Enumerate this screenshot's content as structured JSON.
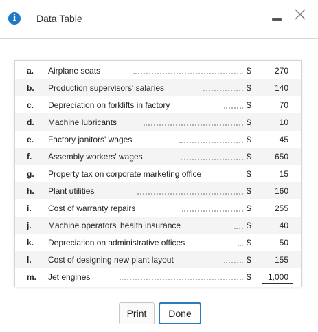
{
  "dialog": {
    "title": "Data Table",
    "info_icon": "info-icon",
    "minimize_icon": "minus-icon",
    "close_icon": "close-icon"
  },
  "table": {
    "rows": [
      {
        "letter": "a.",
        "desc": "Airplane seats",
        "dollar": "$",
        "amount": "270"
      },
      {
        "letter": "b.",
        "desc": "Production supervisors' salaries",
        "dollar": "$",
        "amount": "140"
      },
      {
        "letter": "c.",
        "desc": "Depreciation on forklifts in factory",
        "dollar": "$",
        "amount": "70"
      },
      {
        "letter": "d.",
        "desc": "Machine lubricants",
        "dollar": "$",
        "amount": "10"
      },
      {
        "letter": "e.",
        "desc": "Factory janitors' wages",
        "dollar": "$",
        "amount": "45"
      },
      {
        "letter": "f.",
        "desc": "Assembly workers' wages",
        "dollar": "$",
        "amount": "650"
      },
      {
        "letter": "g.",
        "desc": "Property tax on corporate marketing office",
        "dollar": "$",
        "amount": "15"
      },
      {
        "letter": "h.",
        "desc": "Plant utilities",
        "dollar": "$",
        "amount": "160"
      },
      {
        "letter": "i.",
        "desc": "Cost of warranty repairs",
        "dollar": "$",
        "amount": "255"
      },
      {
        "letter": "j.",
        "desc": "Machine operators' health insurance",
        "dollar": "$",
        "amount": "40"
      },
      {
        "letter": "k.",
        "desc": "Depreciation on administrative offices",
        "dollar": "$",
        "amount": "50"
      },
      {
        "letter": "l.",
        "desc": "Cost of designing new plant layout",
        "dollar": "$",
        "amount": "155"
      },
      {
        "letter": "m.",
        "desc": "Jet engines",
        "dollar": "$",
        "amount": "1,000"
      }
    ]
  },
  "buttons": {
    "print_label": "Print",
    "done_label": "Done"
  }
}
